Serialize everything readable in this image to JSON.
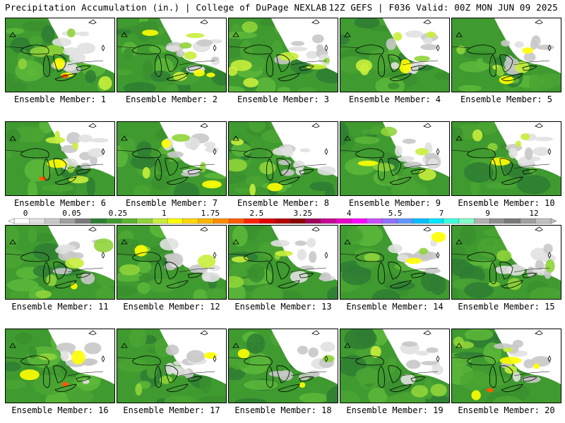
{
  "header": {
    "left": "Precipitation Accumulation (in.) | College of DuPage NEXLAB",
    "right": "12Z GEFS | F036 Valid: 00Z MON JUN 09 2025"
  },
  "panels": [
    {
      "label": "Ensemble Member: 1"
    },
    {
      "label": "Ensemble Member: 2"
    },
    {
      "label": "Ensemble Member: 3"
    },
    {
      "label": "Ensemble Member: 4"
    },
    {
      "label": "Ensemble Member: 5"
    },
    {
      "label": "Ensemble Member: 6"
    },
    {
      "label": "Ensemble Member: 7"
    },
    {
      "label": "Ensemble Member: 8"
    },
    {
      "label": "Ensemble Member: 9"
    },
    {
      "label": "Ensemble Member: 10"
    },
    {
      "label": "Ensemble Member: 11"
    },
    {
      "label": "Ensemble Member: 12"
    },
    {
      "label": "Ensemble Member: 13"
    },
    {
      "label": "Ensemble Member: 14"
    },
    {
      "label": "Ensemble Member: 15"
    },
    {
      "label": "Ensemble Member: 16"
    },
    {
      "label": "Ensemble Member: 17"
    },
    {
      "label": "Ensemble Member: 18"
    },
    {
      "label": "Ensemble Member: 19"
    },
    {
      "label": "Ensemble Member: 20"
    }
  ],
  "colorbar": {
    "labels": [
      "0",
      "0.05",
      "0.25",
      "1",
      "1.75",
      "2.5",
      "3.25",
      "4",
      "5.5",
      "7",
      "9",
      "12"
    ],
    "colors": [
      "#ffffff",
      "#e1e1e1",
      "#c8c8c8",
      "#a0a0a0",
      "#7a7a7a",
      "#2e7d32",
      "#3f9a30",
      "#5ab42e",
      "#8fd43a",
      "#c8ee3c",
      "#ffff00",
      "#ffd700",
      "#ffb400",
      "#ff8c00",
      "#ff5a00",
      "#ff2200",
      "#e00000",
      "#b40000",
      "#8b0000",
      "#a0005a",
      "#c80096",
      "#e600c8",
      "#ff00ff",
      "#c850ff",
      "#9070ff",
      "#6096ff",
      "#00bfff",
      "#00e6ff",
      "#40ffe0",
      "#80ffc8",
      "#b0b0b0",
      "#909090",
      "#787878",
      "#a0a0a0",
      "#c0c0c0"
    ]
  }
}
